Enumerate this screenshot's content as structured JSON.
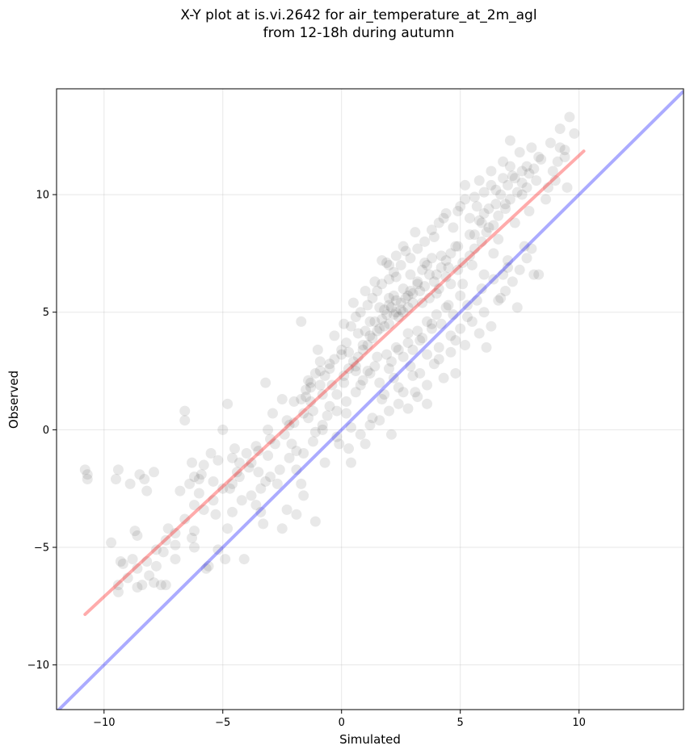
{
  "chart_data": {
    "type": "scatter",
    "title_line1": "X-Y plot at is.vi.2642 for air_temperature_at_2m_agl",
    "title_line2": "from 12-18h during autumn",
    "xlabel": "Simulated",
    "ylabel": "Observed",
    "xlim": [
      -12,
      14.4
    ],
    "ylim": [
      -11.9,
      14.5
    ],
    "xticks": [
      -10,
      -5,
      0,
      5,
      10
    ],
    "yticks": [
      -10,
      -5,
      0,
      5,
      10
    ],
    "xtick_labels": [
      "−10",
      "−5",
      "0",
      "5",
      "10"
    ],
    "ytick_labels": [
      "−10",
      "−5",
      "0",
      "5",
      "10"
    ],
    "grid": true,
    "point_color": "#000000",
    "regression_line": {
      "color": "#ff0000",
      "x": [
        -10.8,
        10.2
      ],
      "y": [
        -7.85,
        11.85
      ]
    },
    "identity_line": {
      "color": "#0000ff",
      "x": [
        -12,
        14.4
      ],
      "y": [
        -12,
        14.4
      ]
    },
    "points": [
      [
        -10.8,
        -1.7
      ],
      [
        -10.7,
        -1.9
      ],
      [
        -10.7,
        -2.1
      ],
      [
        -9.4,
        -1.7
      ],
      [
        -9.5,
        -2.1
      ],
      [
        -9.7,
        -4.8
      ],
      [
        -9.3,
        -5.6
      ],
      [
        -9.2,
        -5.7
      ],
      [
        -9.4,
        -6.9
      ],
      [
        -9.4,
        -6.6
      ],
      [
        -8.9,
        -2.3
      ],
      [
        -8.5,
        -1.9
      ],
      [
        -8.3,
        -2.1
      ],
      [
        -8.2,
        -2.6
      ],
      [
        -7.9,
        -1.8
      ],
      [
        -8.7,
        -4.3
      ],
      [
        -8.6,
        -4.5
      ],
      [
        -8.8,
        -5.5
      ],
      [
        -8.6,
        -6.7
      ],
      [
        -8.4,
        -6.6
      ],
      [
        -8.1,
        -6.2
      ],
      [
        -7.9,
        -6.5
      ],
      [
        -7.6,
        -6.6
      ],
      [
        -7.4,
        -6.6
      ],
      [
        -7.8,
        -5.8
      ],
      [
        -7.5,
        -5.2
      ],
      [
        -7.3,
        -4.2
      ],
      [
        -7.0,
        -4.9
      ],
      [
        -7.0,
        -5.5
      ],
      [
        -6.8,
        -2.6
      ],
      [
        -6.6,
        0.8
      ],
      [
        -6.6,
        0.4
      ],
      [
        -6.3,
        -1.4
      ],
      [
        -6.2,
        -2.0
      ],
      [
        -6.2,
        -4.3
      ],
      [
        -6.3,
        -4.6
      ],
      [
        -6.2,
        -5.0
      ],
      [
        -6.0,
        -2.1
      ],
      [
        -6.0,
        -2.7
      ],
      [
        -5.8,
        -1.5
      ],
      [
        -5.6,
        -5.8
      ],
      [
        -5.7,
        -5.9
      ],
      [
        -5.5,
        -1.0
      ],
      [
        -5.4,
        -2.2
      ],
      [
        -5.3,
        -3.6
      ],
      [
        -5.2,
        -5.1
      ],
      [
        -5.0,
        0.0
      ],
      [
        -4.8,
        1.1
      ],
      [
        -4.8,
        -4.2
      ],
      [
        -4.9,
        -5.5
      ],
      [
        -4.7,
        -2.5
      ],
      [
        -4.6,
        -1.2
      ],
      [
        -4.4,
        -1.8
      ],
      [
        -4.3,
        -2.0
      ],
      [
        -4.1,
        -5.5
      ],
      [
        -4.0,
        -1.0
      ],
      [
        -3.8,
        -1.4
      ],
      [
        -3.6,
        -0.7
      ],
      [
        -3.5,
        -1.8
      ],
      [
        -3.6,
        -3.2
      ],
      [
        -3.3,
        -4.0
      ],
      [
        -3.4,
        -3.5
      ],
      [
        -3.2,
        -2.2
      ],
      [
        -3.2,
        2.0
      ],
      [
        -3.1,
        0.0
      ],
      [
        -3.0,
        -0.4
      ],
      [
        -2.9,
        0.7
      ],
      [
        -2.7,
        -2.3
      ],
      [
        -2.5,
        -4.2
      ],
      [
        -2.3,
        -3.4
      ],
      [
        -2.5,
        1.3
      ],
      [
        -2.3,
        0.4
      ],
      [
        -2.2,
        0.2
      ],
      [
        -2.1,
        -0.6
      ],
      [
        -2.0,
        1.2
      ],
      [
        -1.9,
        -0.9
      ],
      [
        -1.9,
        -1.7
      ],
      [
        -1.9,
        -3.6
      ],
      [
        -1.7,
        4.6
      ],
      [
        -1.7,
        -2.3
      ],
      [
        -1.6,
        -2.8
      ],
      [
        -1.5,
        1.4
      ],
      [
        -1.4,
        0.5
      ],
      [
        -1.4,
        2.1
      ],
      [
        -1.3,
        1.8
      ],
      [
        -1.2,
        0.8
      ],
      [
        -1.1,
        -0.1
      ],
      [
        -1.1,
        -3.9
      ],
      [
        -1.0,
        3.4
      ],
      [
        -0.9,
        2.5
      ],
      [
        -0.8,
        1.5
      ],
      [
        -0.8,
        0.2
      ],
      [
        -0.7,
        -1.4
      ],
      [
        -0.6,
        0.6
      ],
      [
        -0.5,
        2.8
      ],
      [
        -0.4,
        1.9
      ],
      [
        -0.3,
        4.0
      ],
      [
        -0.2,
        0.8
      ],
      [
        -0.1,
        -0.6
      ],
      [
        0.0,
        3.2
      ],
      [
        0.1,
        2.0
      ],
      [
        0.1,
        4.5
      ],
      [
        0.2,
        1.2
      ],
      [
        0.3,
        3.3
      ],
      [
        0.4,
        -1.4
      ],
      [
        0.4,
        0.1
      ],
      [
        0.5,
        5.4
      ],
      [
        0.6,
        2.7
      ],
      [
        0.7,
        4.1
      ],
      [
        0.8,
        1.9
      ],
      [
        0.9,
        3.6
      ],
      [
        1.0,
        5.9
      ],
      [
        1.0,
        -0.6
      ],
      [
        1.1,
        2.5
      ],
      [
        1.2,
        4.6
      ],
      [
        1.3,
        0.5
      ],
      [
        1.4,
        6.3
      ],
      [
        1.5,
        3.1
      ],
      [
        1.6,
        5.2
      ],
      [
        1.7,
        1.3
      ],
      [
        1.8,
        4.4
      ],
      [
        1.9,
        7.1
      ],
      [
        2.0,
        2.6
      ],
      [
        2.0,
        5.6
      ],
      [
        2.1,
        -0.2
      ],
      [
        2.2,
        4.9
      ],
      [
        2.3,
        6.5
      ],
      [
        2.4,
        3.4
      ],
      [
        2.5,
        5.1
      ],
      [
        2.6,
        1.6
      ],
      [
        2.7,
        7.6
      ],
      [
        2.8,
        4.1
      ],
      [
        2.9,
        5.9
      ],
      [
        3.0,
        2.3
      ],
      [
        3.1,
        8.4
      ],
      [
        3.2,
        6.2
      ],
      [
        3.3,
        3.8
      ],
      [
        3.4,
        5.4
      ],
      [
        3.5,
        7.1
      ],
      [
        3.6,
        1.9
      ],
      [
        3.7,
        6.6
      ],
      [
        3.8,
        4.5
      ],
      [
        3.9,
        8.2
      ],
      [
        4.0,
        5.8
      ],
      [
        4.1,
        3.0
      ],
      [
        4.2,
        7.4
      ],
      [
        4.3,
        9.0
      ],
      [
        4.4,
        5.2
      ],
      [
        4.5,
        6.9
      ],
      [
        4.6,
        4.0
      ],
      [
        4.7,
        8.6
      ],
      [
        4.8,
        2.4
      ],
      [
        4.9,
        7.8
      ],
      [
        5.0,
        9.5
      ],
      [
        5.1,
        6.2
      ],
      [
        5.2,
        10.4
      ],
      [
        5.3,
        4.8
      ],
      [
        5.4,
        8.3
      ],
      [
        5.5,
        7.0
      ],
      [
        5.6,
        9.9
      ],
      [
        5.7,
        5.5
      ],
      [
        5.8,
        10.6
      ],
      [
        5.9,
        8.8
      ],
      [
        6.0,
        6.6
      ],
      [
        6.1,
        3.5
      ],
      [
        6.2,
        9.4
      ],
      [
        6.3,
        11.0
      ],
      [
        6.4,
        7.5
      ],
      [
        6.5,
        10.2
      ],
      [
        6.6,
        8.1
      ],
      [
        6.7,
        5.6
      ],
      [
        6.8,
        11.4
      ],
      [
        6.9,
        9.6
      ],
      [
        7.0,
        7.2
      ],
      [
        7.1,
        12.3
      ],
      [
        7.2,
        10.8
      ],
      [
        7.3,
        8.8
      ],
      [
        7.4,
        5.2
      ],
      [
        7.5,
        11.8
      ],
      [
        7.6,
        10.0
      ],
      [
        7.7,
        7.8
      ],
      [
        7.8,
        11.2
      ],
      [
        7.9,
        9.3
      ],
      [
        8.0,
        12.0
      ],
      [
        8.1,
        6.6
      ],
      [
        8.2,
        10.6
      ],
      [
        8.4,
        11.5
      ],
      [
        8.6,
        9.8
      ],
      [
        8.8,
        12.2
      ],
      [
        9.0,
        10.6
      ],
      [
        9.2,
        12.8
      ],
      [
        9.4,
        11.9
      ],
      [
        9.5,
        10.3
      ],
      [
        9.6,
        13.3
      ],
      [
        9.8,
        12.6
      ],
      [
        9.4,
        11.6
      ],
      [
        9.2,
        12.0
      ],
      [
        8.9,
        11.0
      ],
      [
        8.7,
        10.3
      ],
      [
        9.1,
        11.4
      ],
      [
        2.3,
        5.0
      ],
      [
        2.5,
        5.4
      ],
      [
        2.1,
        5.2
      ],
      [
        2.7,
        5.6
      ],
      [
        2.4,
        4.8
      ],
      [
        1.9,
        4.9
      ],
      [
        2.8,
        5.2
      ],
      [
        2.2,
        5.7
      ],
      [
        1.7,
        4.7
      ],
      [
        3.0,
        5.8
      ],
      [
        2.6,
        6.0
      ],
      [
        2.0,
        4.5
      ],
      [
        3.2,
        6.3
      ],
      [
        1.5,
        4.2
      ],
      [
        2.9,
        6.6
      ],
      [
        3.4,
        6.8
      ],
      [
        1.3,
        3.9
      ],
      [
        3.6,
        7.0
      ],
      [
        1.1,
        3.6
      ],
      [
        3.8,
        7.3
      ],
      [
        0.9,
        3.4
      ],
      [
        4.0,
        6.6
      ],
      [
        0.7,
        3.1
      ],
      [
        4.2,
        6.9
      ],
      [
        0.5,
        2.9
      ],
      [
        4.4,
        7.2
      ],
      [
        0.3,
        2.6
      ],
      [
        4.6,
        7.5
      ],
      [
        0.1,
        2.3
      ],
      [
        4.8,
        7.8
      ],
      [
        1.6,
        2.0
      ],
      [
        1.8,
        1.5
      ],
      [
        2.2,
        2.2
      ],
      [
        2.4,
        1.8
      ],
      [
        2.9,
        2.7
      ],
      [
        3.1,
        1.6
      ],
      [
        3.3,
        2.4
      ],
      [
        3.6,
        3.2
      ],
      [
        3.9,
        2.8
      ],
      [
        4.1,
        3.5
      ],
      [
        4.3,
        2.2
      ],
      [
        4.6,
        3.3
      ],
      [
        4.8,
        3.8
      ],
      [
        5.0,
        4.3
      ],
      [
        5.2,
        3.6
      ],
      [
        5.5,
        4.6
      ],
      [
        5.8,
        4.1
      ],
      [
        6.0,
        5.0
      ],
      [
        6.3,
        4.4
      ],
      [
        6.6,
        5.5
      ],
      [
        6.9,
        5.9
      ],
      [
        7.2,
        6.3
      ],
      [
        7.5,
        6.8
      ],
      [
        7.8,
        7.3
      ],
      [
        8.0,
        7.7
      ],
      [
        8.3,
        6.6
      ],
      [
        6.8,
        6.6
      ],
      [
        7.0,
        6.9
      ],
      [
        6.4,
        6.4
      ],
      [
        5.9,
        6.0
      ],
      [
        -0.5,
        1.0
      ],
      [
        -0.2,
        1.5
      ],
      [
        0.2,
        0.7
      ],
      [
        0.6,
        1.6
      ],
      [
        -0.9,
        1.9
      ],
      [
        -1.3,
        1.2
      ],
      [
        -1.6,
        0.7
      ],
      [
        -2.0,
        0.3
      ],
      [
        -2.4,
        -0.2
      ],
      [
        -2.8,
        -0.6
      ],
      [
        -3.1,
        -1.1
      ],
      [
        -3.5,
        -0.9
      ],
      [
        -3.9,
        -1.6
      ],
      [
        -4.3,
        -1.4
      ],
      [
        -4.6,
        -2.3
      ],
      [
        -5.0,
        -2.5
      ],
      [
        -5.4,
        -3.0
      ],
      [
        -5.8,
        -3.4
      ],
      [
        -6.2,
        -3.2
      ],
      [
        -6.6,
        -3.8
      ],
      [
        -7.0,
        -4.4
      ],
      [
        -7.4,
        -4.7
      ],
      [
        -7.8,
        -5.1
      ],
      [
        -8.2,
        -5.6
      ],
      [
        -8.6,
        -5.9
      ],
      [
        -9.0,
        -6.3
      ],
      [
        -6.4,
        -2.3
      ],
      [
        -5.9,
        -1.9
      ],
      [
        -5.2,
        -1.3
      ],
      [
        -4.5,
        -0.8
      ],
      [
        1.0,
        4.2
      ],
      [
        1.2,
        4.0
      ],
      [
        1.4,
        4.6
      ],
      [
        1.6,
        4.3
      ],
      [
        1.8,
        5.1
      ],
      [
        2.0,
        5.3
      ],
      [
        2.3,
        5.5
      ],
      [
        2.6,
        5.0
      ],
      [
        2.8,
        5.7
      ],
      [
        3.0,
        5.4
      ],
      [
        3.3,
        5.9
      ],
      [
        3.5,
        6.1
      ],
      [
        3.7,
        5.6
      ],
      [
        3.9,
        6.3
      ],
      [
        4.1,
        6.0
      ],
      [
        4.4,
        6.5
      ],
      [
        4.6,
        6.2
      ],
      [
        4.9,
        6.8
      ],
      [
        5.1,
        7.1
      ],
      [
        5.4,
        7.4
      ],
      [
        5.6,
        7.7
      ],
      [
        5.9,
        8.0
      ],
      [
        6.1,
        8.4
      ],
      [
        6.4,
        8.7
      ],
      [
        6.6,
        9.1
      ],
      [
        6.9,
        9.4
      ],
      [
        7.1,
        9.8
      ],
      [
        7.4,
        10.1
      ],
      [
        7.6,
        10.5
      ],
      [
        7.9,
        10.9
      ],
      [
        0.4,
        4.4
      ],
      [
        0.6,
        4.8
      ],
      [
        0.8,
        5.0
      ],
      [
        1.1,
        5.3
      ],
      [
        1.3,
        5.6
      ],
      [
        1.5,
        5.9
      ],
      [
        1.7,
        6.2
      ],
      [
        2.0,
        6.4
      ],
      [
        2.2,
        6.7
      ],
      [
        2.5,
        7.0
      ],
      [
        0.2,
        3.7
      ],
      [
        0.0,
        3.4
      ],
      [
        -0.3,
        3.0
      ],
      [
        -0.5,
        2.6
      ],
      [
        -0.7,
        2.3
      ],
      [
        -0.9,
        2.9
      ],
      [
        -1.1,
        2.4
      ],
      [
        -1.3,
        2.0
      ],
      [
        -1.5,
        1.7
      ],
      [
        -1.7,
        1.3
      ],
      [
        3.2,
        4.2
      ],
      [
        3.4,
        3.9
      ],
      [
        3.6,
        4.6
      ],
      [
        3.8,
        4.3
      ],
      [
        4.0,
        4.9
      ],
      [
        4.2,
        4.5
      ],
      [
        4.5,
        5.3
      ],
      [
        4.7,
        4.9
      ],
      [
        5.0,
        5.7
      ],
      [
        5.3,
        5.3
      ],
      [
        1.9,
        3.2
      ],
      [
        2.1,
        2.9
      ],
      [
        2.3,
        3.5
      ],
      [
        2.6,
        3.1
      ],
      [
        2.8,
        3.7
      ],
      [
        3.0,
        3.4
      ],
      [
        1.4,
        2.7
      ],
      [
        1.2,
        2.4
      ],
      [
        0.9,
        2.1
      ],
      [
        0.6,
        2.5
      ],
      [
        5.6,
        8.3
      ],
      [
        5.8,
        8.9
      ],
      [
        6.0,
        9.2
      ],
      [
        6.2,
        8.6
      ],
      [
        6.5,
        9.6
      ],
      [
        6.7,
        10.0
      ],
      [
        6.3,
        10.4
      ],
      [
        6.0,
        10.1
      ],
      [
        5.7,
        9.5
      ],
      [
        5.4,
        9.0
      ],
      [
        7.0,
        10.4
      ],
      [
        7.3,
        10.7
      ],
      [
        7.6,
        11.0
      ],
      [
        7.8,
        10.3
      ],
      [
        8.1,
        11.1
      ],
      [
        8.3,
        11.6
      ],
      [
        6.8,
        10.7
      ],
      [
        7.1,
        11.2
      ],
      [
        5.2,
        9.8
      ],
      [
        4.9,
        9.3
      ],
      [
        3.5,
        8.0
      ],
      [
        3.8,
        8.5
      ],
      [
        4.1,
        8.8
      ],
      [
        4.4,
        9.2
      ],
      [
        3.2,
        7.7
      ],
      [
        2.9,
        7.3
      ],
      [
        2.6,
        7.8
      ],
      [
        2.3,
        7.4
      ],
      [
        2.0,
        7.0
      ],
      [
        1.7,
        7.2
      ],
      [
        -0.2,
        -0.3
      ],
      [
        0.3,
        -0.8
      ],
      [
        0.8,
        -0.2
      ],
      [
        1.2,
        0.2
      ],
      [
        1.6,
        0.4
      ],
      [
        2.0,
        0.8
      ],
      [
        2.4,
        1.1
      ],
      [
        2.8,
        0.9
      ],
      [
        3.2,
        1.4
      ],
      [
        3.6,
        1.1
      ],
      [
        -0.8,
        0.0
      ],
      [
        -1.2,
        -0.5
      ],
      [
        -1.6,
        -1.0
      ],
      [
        -2.2,
        -1.2
      ],
      [
        -2.6,
        -1.7
      ],
      [
        -3.0,
        -2.0
      ],
      [
        -3.4,
        -2.5
      ],
      [
        -3.8,
        -2.8
      ],
      [
        -4.2,
        -3.0
      ],
      [
        -4.6,
        -3.5
      ]
    ]
  }
}
